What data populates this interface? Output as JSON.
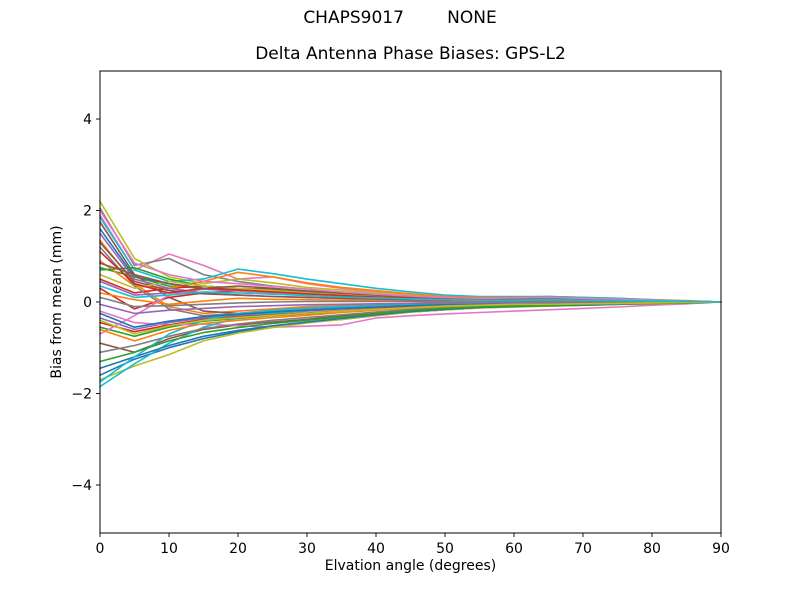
{
  "window": {
    "suptitle": "CHAPS9017        NONE",
    "station": "CHAPS9017",
    "model": "NONE"
  },
  "chart_data": {
    "type": "line",
    "title": "Delta Antenna Phase Biases: GPS-L2",
    "suptitle": "CHAPS9017        NONE",
    "xlabel": "Elvation angle (degrees)",
    "ylabel": "Bias from mean (mm)",
    "xlim": [
      0,
      90
    ],
    "ylim": [
      -5.05,
      5.05
    ],
    "grid": false,
    "legend": "none",
    "xticks": [
      "0",
      "10",
      "20",
      "30",
      "40",
      "50",
      "60",
      "70",
      "80",
      "90"
    ],
    "xtick_values": [
      0,
      10,
      20,
      30,
      40,
      50,
      60,
      70,
      80,
      90
    ],
    "yticks": [
      "4",
      "2",
      "0",
      "−2",
      "−4"
    ],
    "ytick_values": [
      4,
      2,
      0,
      -2,
      -4
    ],
    "palette": [
      "#1f77b4",
      "#ff7f0e",
      "#2ca02c",
      "#d62728",
      "#9467bd",
      "#8c564b",
      "#e377c2",
      "#7f7f7f",
      "#bcbd22",
      "#17becf"
    ],
    "x": [
      0,
      5,
      10,
      15,
      20,
      25,
      30,
      35,
      40,
      45,
      50,
      55,
      60,
      65,
      70,
      75,
      80,
      85,
      90
    ],
    "series": [
      {
        "color": 0,
        "values": [
          1.6,
          0.55,
          0.4,
          0.3,
          0.28,
          0.22,
          0.18,
          0.15,
          0.1,
          0.08,
          0.05,
          0.05,
          0.08,
          0.1,
          0.08,
          0.06,
          0.04,
          0.02,
          0
        ]
      },
      {
        "color": 1,
        "values": [
          1.35,
          0.4,
          -0.1,
          -0.25,
          -0.2,
          -0.15,
          -0.1,
          -0.08,
          -0.05,
          -0.04,
          -0.03,
          -0.02,
          -0.02,
          -0.01,
          -0.01,
          0,
          0,
          0,
          0
        ]
      },
      {
        "color": 2,
        "values": [
          0.75,
          0.55,
          0.35,
          0.3,
          0.25,
          0.2,
          0.18,
          0.15,
          0.12,
          0.1,
          0.08,
          0.08,
          0.09,
          0.1,
          0.08,
          0.06,
          0.04,
          0.02,
          0
        ]
      },
      {
        "color": 3,
        "values": [
          0.5,
          0.2,
          0.3,
          0.35,
          0.3,
          0.28,
          0.22,
          0.18,
          0.15,
          0.12,
          0.1,
          0.08,
          0.08,
          0.08,
          0.07,
          0.05,
          0.03,
          0.02,
          0
        ]
      },
      {
        "color": 4,
        "values": [
          -0.35,
          -0.6,
          -0.45,
          -0.35,
          -0.3,
          -0.25,
          -0.2,
          -0.15,
          -0.12,
          -0.1,
          -0.06,
          -0.05,
          -0.04,
          -0.04,
          -0.03,
          -0.02,
          -0.01,
          -0.01,
          0
        ]
      },
      {
        "color": 5,
        "values": [
          1.75,
          0.6,
          0.1,
          -0.2,
          -0.25,
          -0.2,
          -0.15,
          -0.1,
          -0.08,
          -0.06,
          -0.05,
          -0.04,
          -0.03,
          -0.03,
          -0.02,
          -0.02,
          -0.01,
          0,
          0
        ]
      },
      {
        "color": 6,
        "values": [
          1.9,
          0.7,
          1.05,
          0.8,
          0.5,
          0.55,
          0.4,
          0.3,
          0.22,
          0.16,
          0.1,
          0.08,
          0.1,
          0.12,
          0.1,
          0.07,
          0.05,
          0.02,
          0
        ]
      },
      {
        "color": 7,
        "values": [
          2.05,
          0.8,
          0.95,
          0.6,
          0.45,
          0.35,
          0.28,
          0.2,
          0.16,
          0.12,
          0.1,
          0.08,
          0.1,
          0.11,
          0.09,
          0.07,
          0.04,
          0.02,
          0
        ]
      },
      {
        "color": 8,
        "values": [
          2.2,
          0.95,
          0.55,
          0.4,
          0.5,
          0.42,
          0.32,
          0.26,
          0.2,
          0.15,
          0.1,
          0.1,
          0.11,
          0.12,
          0.1,
          0.08,
          0.05,
          0.03,
          0
        ]
      },
      {
        "color": 9,
        "values": [
          1.85,
          0.7,
          0.45,
          0.5,
          0.72,
          0.62,
          0.5,
          0.4,
          0.3,
          0.22,
          0.15,
          0.12,
          0.12,
          0.12,
          0.1,
          0.08,
          0.05,
          0.02,
          0
        ]
      },
      {
        "color": 0,
        "values": [
          -1.6,
          -1.25,
          -1.0,
          -0.8,
          -0.65,
          -0.55,
          -0.45,
          -0.38,
          -0.3,
          -0.22,
          -0.17,
          -0.13,
          -0.1,
          -0.09,
          -0.07,
          -0.05,
          -0.04,
          -0.02,
          0
        ]
      },
      {
        "color": 1,
        "values": [
          0.9,
          0.35,
          0.3,
          0.45,
          0.65,
          0.55,
          0.42,
          0.32,
          0.25,
          0.18,
          0.12,
          0.1,
          0.1,
          0.1,
          0.08,
          0.06,
          0.04,
          0.02,
          0
        ]
      },
      {
        "color": 2,
        "values": [
          -0.55,
          -0.75,
          -0.55,
          -0.42,
          -0.36,
          -0.3,
          -0.26,
          -0.2,
          -0.16,
          -0.12,
          -0.08,
          -0.06,
          -0.05,
          -0.05,
          -0.04,
          -0.03,
          -0.02,
          -0.01,
          0
        ]
      },
      {
        "color": 3,
        "values": [
          0.3,
          -0.15,
          0.1,
          0.2,
          0.25,
          0.2,
          0.15,
          0.12,
          0.1,
          0.08,
          0.05,
          0.04,
          0.05,
          0.06,
          0.05,
          0.04,
          0.02,
          0.01,
          0
        ]
      },
      {
        "color": 4,
        "values": [
          1.5,
          0.5,
          0.3,
          0.2,
          0.15,
          0.12,
          0.1,
          0.08,
          0.06,
          0.05,
          0.04,
          0.03,
          0.03,
          0.04,
          0.03,
          0.02,
          0.02,
          0.01,
          0
        ]
      },
      {
        "color": 5,
        "values": [
          -0.9,
          -1.1,
          -0.8,
          -0.6,
          -0.5,
          -0.44,
          -0.38,
          -0.3,
          -0.24,
          -0.18,
          -0.12,
          -0.1,
          -0.08,
          -0.07,
          -0.05,
          -0.04,
          -0.03,
          -0.01,
          0
        ]
      },
      {
        "color": 6,
        "values": [
          -0.2,
          -0.45,
          -0.5,
          -0.48,
          -0.52,
          -0.55,
          -0.53,
          -0.5,
          -0.35,
          -0.3,
          -0.26,
          -0.23,
          -0.2,
          -0.17,
          -0.14,
          -0.11,
          -0.07,
          -0.04,
          0
        ]
      },
      {
        "color": 7,
        "values": [
          1.2,
          0.35,
          -0.15,
          -0.3,
          -0.25,
          -0.2,
          -0.16,
          -0.12,
          -0.1,
          -0.08,
          -0.06,
          -0.05,
          -0.04,
          -0.03,
          -0.03,
          -0.02,
          -0.01,
          -0.01,
          0
        ]
      },
      {
        "color": 8,
        "values": [
          -1.7,
          -1.4,
          -1.15,
          -0.85,
          -0.68,
          -0.56,
          -0.46,
          -0.38,
          -0.3,
          -0.22,
          -0.17,
          -0.13,
          -0.11,
          -0.09,
          -0.07,
          -0.05,
          -0.04,
          -0.02,
          0
        ]
      },
      {
        "color": 9,
        "values": [
          -1.85,
          -1.35,
          -0.9,
          -0.55,
          -0.35,
          -0.25,
          -0.18,
          -0.14,
          -0.1,
          -0.08,
          -0.06,
          -0.05,
          -0.04,
          -0.03,
          -0.03,
          -0.02,
          -0.01,
          -0.01,
          0
        ]
      },
      {
        "color": 0,
        "values": [
          -1.45,
          -1.2,
          -0.95,
          -0.75,
          -0.62,
          -0.52,
          -0.44,
          -0.36,
          -0.28,
          -0.21,
          -0.16,
          -0.12,
          -0.1,
          -0.08,
          -0.07,
          -0.05,
          -0.03,
          -0.02,
          0
        ]
      },
      {
        "color": 1,
        "values": [
          0.2,
          0.05,
          -0.05,
          0.02,
          0.08,
          0.06,
          0.05,
          0.04,
          0.03,
          0.02,
          0.02,
          0.01,
          0.02,
          0.02,
          0.02,
          0.01,
          0.01,
          0,
          0
        ]
      },
      {
        "color": 2,
        "values": [
          0.7,
          0.75,
          0.5,
          0.35,
          0.3,
          0.26,
          0.22,
          0.18,
          0.14,
          0.11,
          0.09,
          0.08,
          0.08,
          0.09,
          0.07,
          0.05,
          0.03,
          0.02,
          0
        ]
      },
      {
        "color": 3,
        "values": [
          -0.45,
          -0.65,
          -0.5,
          -0.38,
          -0.33,
          -0.28,
          -0.24,
          -0.19,
          -0.15,
          -0.11,
          -0.08,
          -0.06,
          -0.05,
          -0.04,
          -0.03,
          -0.03,
          -0.02,
          -0.01,
          0
        ]
      },
      {
        "color": 4,
        "values": [
          0.45,
          0.15,
          0.2,
          0.28,
          0.24,
          0.2,
          0.16,
          0.13,
          0.1,
          0.08,
          0.06,
          0.05,
          0.05,
          0.06,
          0.05,
          0.03,
          0.02,
          0.01,
          0
        ]
      },
      {
        "color": 5,
        "values": [
          1.3,
          0.45,
          0.25,
          0.18,
          0.15,
          0.12,
          0.1,
          0.08,
          0.07,
          0.05,
          0.04,
          0.04,
          0.04,
          0.05,
          0.04,
          0.03,
          0.02,
          0.01,
          0
        ]
      },
      {
        "color": 6,
        "values": [
          -0.7,
          -0.3,
          0.15,
          0.3,
          0.25,
          0.2,
          0.16,
          0.12,
          0.1,
          0.07,
          0.05,
          0.04,
          0.04,
          0.05,
          0.04,
          0.03,
          0.02,
          0.01,
          0
        ]
      },
      {
        "color": 7,
        "values": [
          -1.1,
          -0.95,
          -0.75,
          -0.58,
          -0.48,
          -0.4,
          -0.34,
          -0.28,
          -0.22,
          -0.16,
          -0.12,
          -0.09,
          -0.08,
          -0.07,
          -0.05,
          -0.04,
          -0.03,
          -0.01,
          0
        ]
      },
      {
        "color": 8,
        "values": [
          0.6,
          0.3,
          0.45,
          0.35,
          0.3,
          0.25,
          0.2,
          0.16,
          0.13,
          0.1,
          0.08,
          0.06,
          0.06,
          0.07,
          0.06,
          0.04,
          0.03,
          0.01,
          0
        ]
      },
      {
        "color": 9,
        "values": [
          -1.75,
          -1.2,
          -0.7,
          -0.4,
          -0.25,
          -0.18,
          -0.13,
          -0.1,
          -0.08,
          -0.06,
          -0.05,
          -0.04,
          -0.03,
          -0.02,
          -0.02,
          -0.01,
          -0.01,
          0,
          0
        ]
      },
      {
        "color": 0,
        "values": [
          -0.25,
          -0.55,
          -0.42,
          -0.32,
          -0.27,
          -0.22,
          -0.18,
          -0.14,
          -0.11,
          -0.08,
          -0.06,
          -0.05,
          -0.04,
          -0.03,
          -0.03,
          -0.02,
          -0.01,
          -0.01,
          0
        ]
      },
      {
        "color": 1,
        "values": [
          -0.6,
          -0.85,
          -0.62,
          -0.47,
          -0.4,
          -0.34,
          -0.29,
          -0.23,
          -0.18,
          -0.13,
          -0.1,
          -0.08,
          -0.06,
          -0.05,
          -0.04,
          -0.03,
          -0.02,
          -0.01,
          0
        ]
      },
      {
        "color": 2,
        "values": [
          -1.3,
          -1.1,
          -0.85,
          -0.67,
          -0.56,
          -0.47,
          -0.4,
          -0.33,
          -0.26,
          -0.19,
          -0.14,
          -0.11,
          -0.09,
          -0.08,
          -0.06,
          -0.04,
          -0.03,
          -0.02,
          0
        ]
      },
      {
        "color": 3,
        "values": [
          1.1,
          0.4,
          0.2,
          0.3,
          0.26,
          0.22,
          0.18,
          0.14,
          0.11,
          0.09,
          0.07,
          0.06,
          0.06,
          0.06,
          0.05,
          0.04,
          0.02,
          0.01,
          0
        ]
      },
      {
        "color": 4,
        "values": [
          -0.05,
          -0.25,
          -0.18,
          -0.14,
          -0.1,
          -0.08,
          -0.06,
          -0.05,
          -0.04,
          -0.03,
          -0.02,
          -0.02,
          -0.01,
          -0.01,
          -0.01,
          0,
          0,
          0,
          0
        ]
      },
      {
        "color": 5,
        "values": [
          0.85,
          0.6,
          0.4,
          0.3,
          0.35,
          0.3,
          0.24,
          0.19,
          0.15,
          0.11,
          0.09,
          0.07,
          0.07,
          0.08,
          0.06,
          0.05,
          0.03,
          0.02,
          0
        ]
      },
      {
        "color": 6,
        "values": [
          2.0,
          0.85,
          0.6,
          0.45,
          0.4,
          0.34,
          0.28,
          0.22,
          0.17,
          0.13,
          0.1,
          0.08,
          0.09,
          0.1,
          0.08,
          0.06,
          0.04,
          0.02,
          0
        ]
      },
      {
        "color": 7,
        "values": [
          0.1,
          -0.1,
          -0.08,
          -0.05,
          -0.02,
          0,
          0.01,
          0.01,
          0.01,
          0.01,
          0,
          0,
          0.01,
          0.01,
          0.01,
          0,
          0,
          0,
          0
        ]
      },
      {
        "color": 8,
        "values": [
          -0.4,
          -0.7,
          -0.52,
          -0.4,
          -0.34,
          -0.29,
          -0.25,
          -0.2,
          -0.16,
          -0.12,
          -0.09,
          -0.07,
          -0.05,
          -0.05,
          -0.04,
          -0.03,
          -0.02,
          -0.01,
          0
        ]
      },
      {
        "color": 9,
        "values": [
          0.35,
          0.1,
          0.15,
          0.22,
          0.2,
          0.17,
          0.14,
          0.11,
          0.09,
          0.07,
          0.05,
          0.04,
          0.04,
          0.05,
          0.04,
          0.03,
          0.02,
          0.01,
          0
        ]
      }
    ]
  }
}
